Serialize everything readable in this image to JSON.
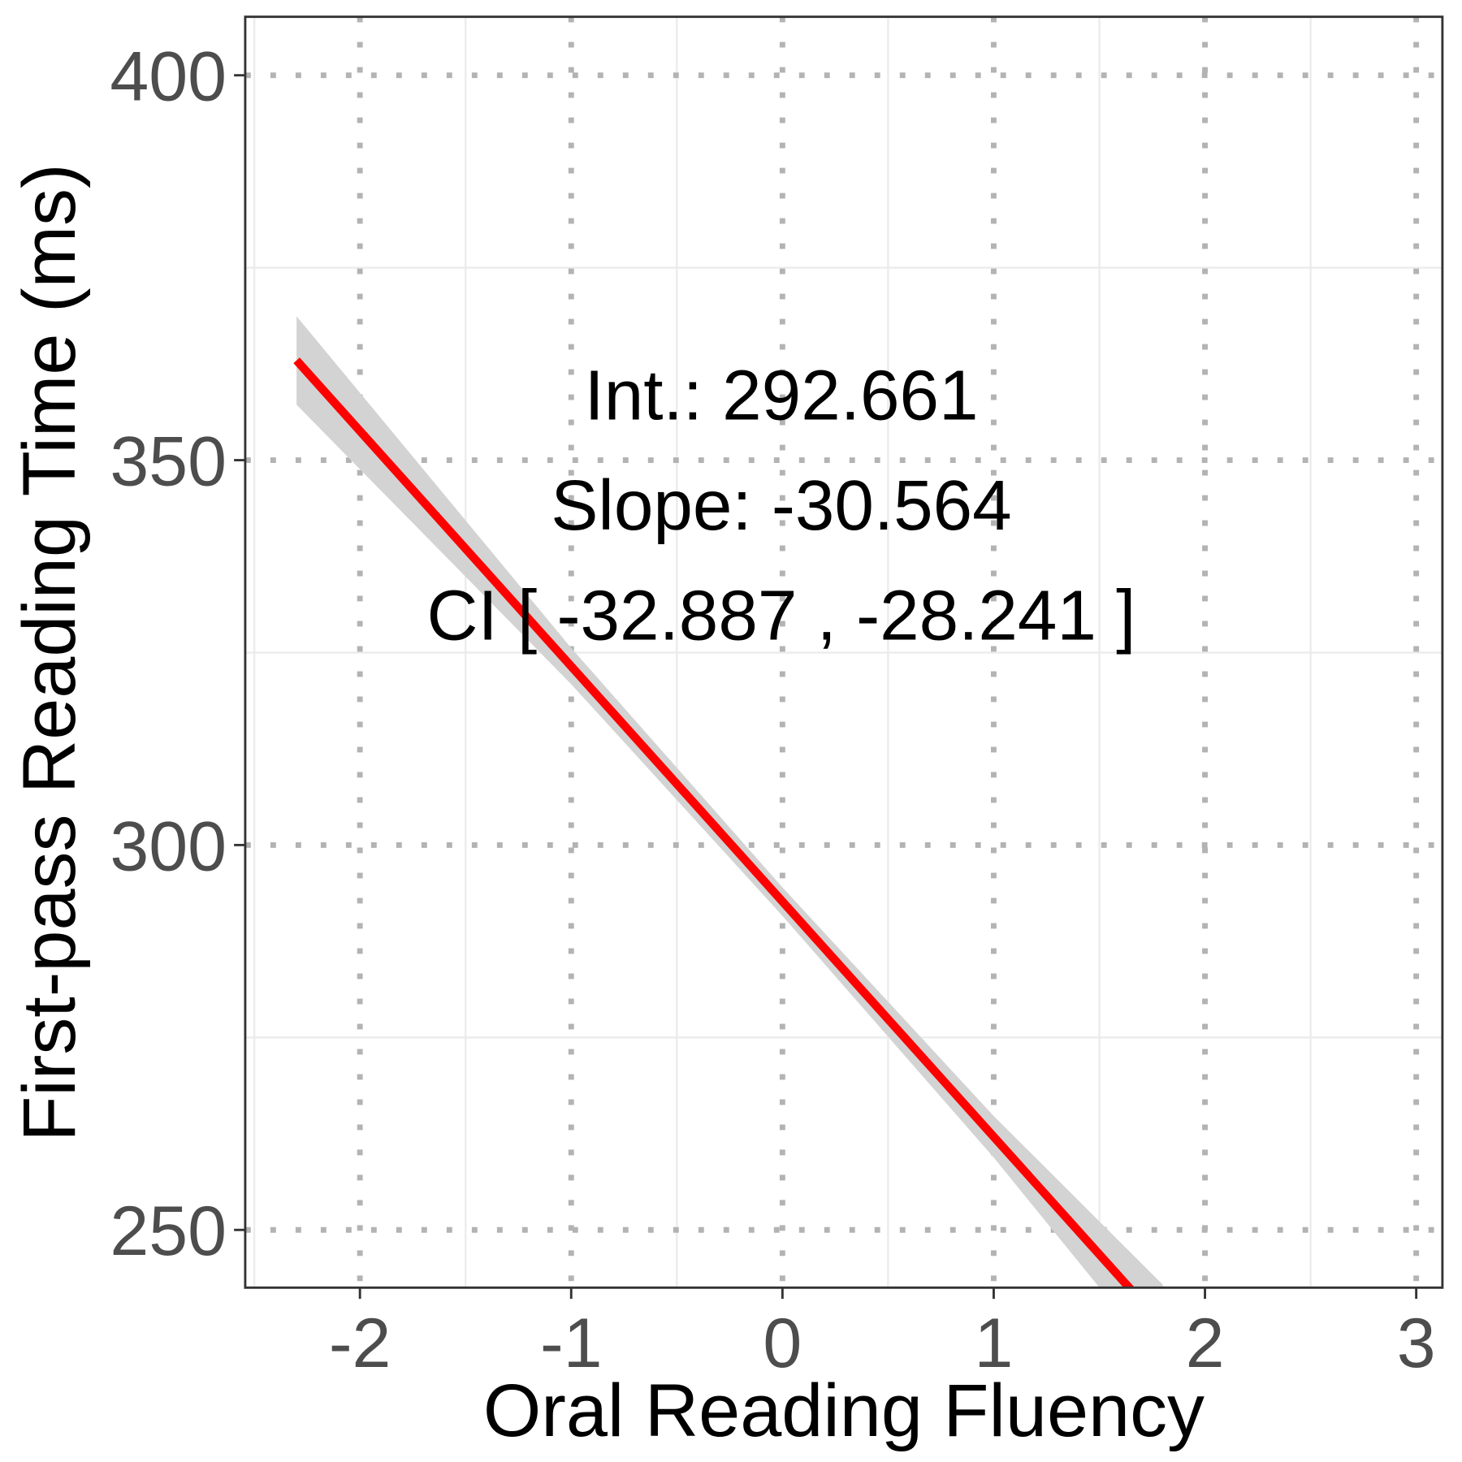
{
  "chart_data": {
    "type": "line",
    "x_label": "Oral Reading Fluency",
    "y_label": "First-pass Reading Time (ms)",
    "x": [
      -2.3,
      -1,
      0,
      1,
      1.8
    ],
    "series": [
      {
        "color": "#ff0000",
        "values": [
          362.96,
          323.22,
          292.66,
          262.1,
          237.65
        ],
        "lower": [
          357.2,
          320.9,
          290.8,
          259.4,
          232.4
        ],
        "upper": [
          368.7,
          325.6,
          294.5,
          264.8,
          242.9
        ],
        "band_color": "#d3d3d3"
      }
    ],
    "annotations": [
      "Int.: 292.661",
      "Slope: -30.564",
      "CI [ -32.887 , -28.241 ]"
    ],
    "xlim": [
      -2.543,
      3.124
    ],
    "ylim": [
      242.5,
      407.6
    ],
    "xticks": [
      -2,
      -1,
      0,
      1,
      2,
      3
    ],
    "yticks": [
      250,
      300,
      350,
      400
    ],
    "x_minor_ticks": [
      -2.5,
      -1.5,
      -0.5,
      0.5,
      1.5,
      2.5
    ],
    "y_minor_ticks": [
      275,
      325,
      375
    ],
    "grid": true
  }
}
